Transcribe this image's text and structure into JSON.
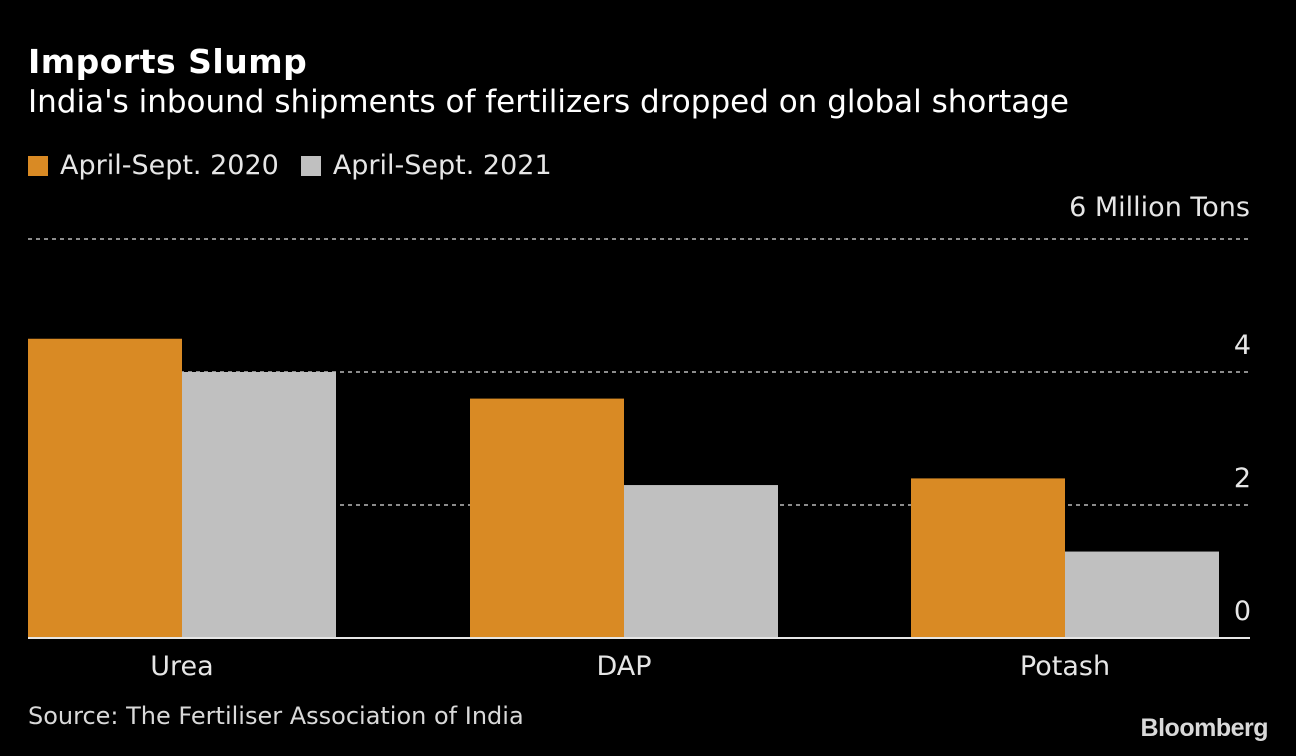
{
  "chart_data": {
    "type": "bar",
    "title": "Imports Slump",
    "subtitle": "India's inbound shipments of fertilizers dropped on global shortage",
    "unit_label": "6 Million Tons",
    "categories": [
      "Urea",
      "DAP",
      "Potash"
    ],
    "series": [
      {
        "name": "April-Sept. 2020",
        "color": "#d98a24",
        "values": [
          4.5,
          3.6,
          2.4
        ]
      },
      {
        "name": "April-Sept. 2021",
        "color": "#c0c0c0",
        "values": [
          4.0,
          2.3,
          1.3
        ]
      }
    ],
    "xlabel": "",
    "ylabel": "Million Tons",
    "ylim": [
      0,
      6
    ],
    "yticks": [
      0,
      2,
      4,
      6
    ],
    "ytick_labels": [
      "0",
      "2",
      "4",
      "6 Million Tons"
    ],
    "y_axis_side": "right",
    "grid": true,
    "legend": "top-left",
    "source": "Source: The Fertiliser Association of India",
    "brand": "Bloomberg"
  }
}
